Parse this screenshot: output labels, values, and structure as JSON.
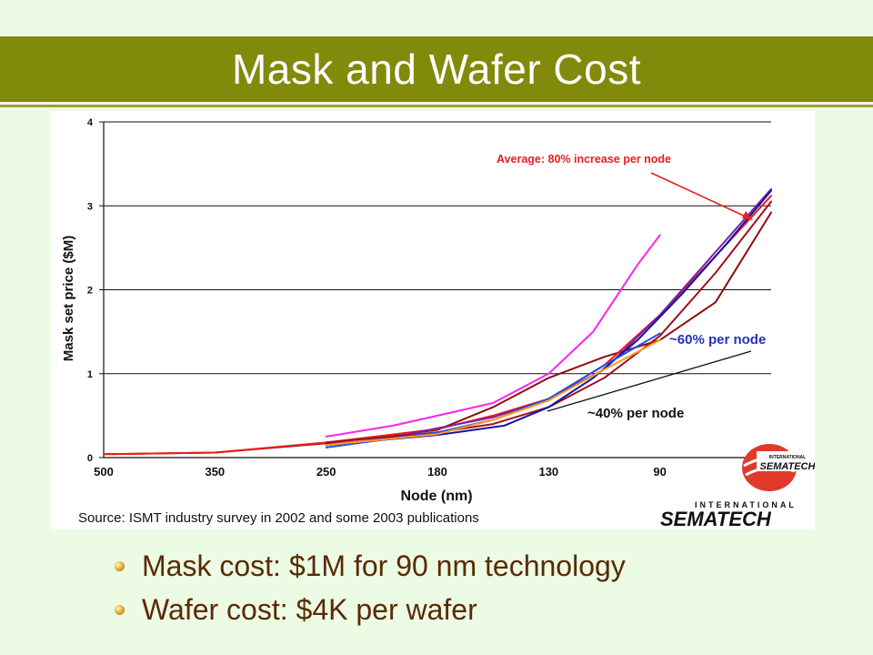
{
  "slide": {
    "title": "Mask and Wafer Cost",
    "bullets": [
      "Mask cost: $1M for 90 nm technology",
      "Wafer cost: $4K per wafer"
    ]
  },
  "chart_data": {
    "type": "line",
    "title": "",
    "xlabel": "Node (nm)",
    "ylabel": "Mask set price ($M)",
    "categories": [
      "500",
      "350",
      "250",
      "180",
      "130",
      "90"
    ],
    "ylim": [
      0,
      4
    ],
    "yticks": [
      "0",
      "1",
      "2",
      "3",
      "4"
    ],
    "grid": true,
    "source": "Source: ISMT industry survey in 2002 and some 2003 publications",
    "logo_text": "INTERNATIONAL SEMATECH",
    "annotations": [
      {
        "text": "Average: 80% increase per node",
        "color": "#e8201f"
      },
      {
        "text": "~60% per node",
        "color": "#2233b8"
      },
      {
        "text": "~40% per node",
        "color": "#111111"
      }
    ],
    "series": [
      {
        "color": "#ff22ee",
        "x": [
          2,
          2.6,
          3,
          3.5,
          4,
          4.4,
          4.8,
          5
        ],
        "y": [
          0.25,
          0.38,
          0.5,
          0.65,
          1.0,
          1.5,
          2.3,
          2.65
        ]
      },
      {
        "color": "#8a0e0e",
        "x": [
          0,
          1,
          2,
          3,
          3.5,
          4,
          4.5,
          5,
          5.5,
          6
        ],
        "y": [
          0.04,
          0.06,
          0.17,
          0.33,
          0.6,
          0.95,
          1.2,
          1.4,
          1.85,
          2.92
        ]
      },
      {
        "color": "#ee1c1c",
        "x": [
          0,
          1,
          2,
          3,
          3.5,
          4,
          4.5,
          5,
          5.5,
          6
        ],
        "y": [
          0.04,
          0.06,
          0.18,
          0.34,
          0.5,
          0.7,
          1.1,
          1.7,
          2.4,
          3.12
        ]
      },
      {
        "color": "#7a1fa8",
        "x": [
          2,
          2.5,
          3,
          3.5,
          4,
          4.5,
          5,
          5.5,
          6
        ],
        "y": [
          0.15,
          0.22,
          0.35,
          0.48,
          0.7,
          1.05,
          1.7,
          2.45,
          3.2
        ]
      },
      {
        "color": "#a01020",
        "x": [
          2,
          2.5,
          3,
          3.5,
          4,
          4.5,
          5,
          5.5,
          6
        ],
        "y": [
          0.18,
          0.24,
          0.3,
          0.4,
          0.6,
          0.95,
          1.45,
          2.2,
          3.05
        ]
      },
      {
        "color": "#1414a8",
        "x": [
          2,
          3,
          3.6,
          4,
          4.4,
          4.8,
          5.2,
          5.6,
          6
        ],
        "y": [
          0.15,
          0.27,
          0.38,
          0.6,
          0.95,
          1.4,
          1.95,
          2.55,
          3.18
        ]
      },
      {
        "color": "#2a4fe0",
        "x": [
          2,
          3,
          3.5,
          4,
          4.5,
          5
        ],
        "y": [
          0.12,
          0.3,
          0.45,
          0.7,
          1.1,
          1.48
        ]
      },
      {
        "color": "#ff9a1a",
        "x": [
          2,
          3,
          3.5,
          4,
          4.5,
          5
        ],
        "y": [
          0.15,
          0.28,
          0.45,
          0.68,
          1.05,
          1.4
        ]
      }
    ]
  }
}
